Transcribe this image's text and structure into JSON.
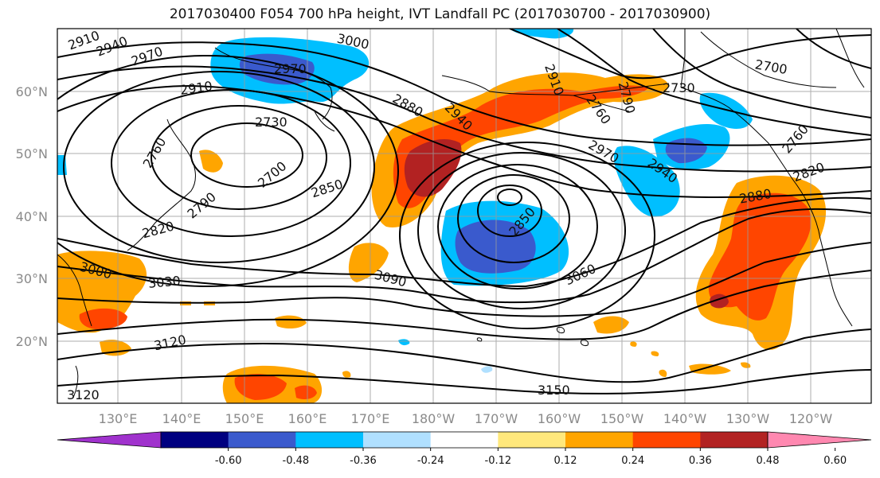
{
  "title": "2017030400 F054 700 hPa height, IVT Landfall PC (2017030700 - 2017030900)",
  "lat_labels": [
    "60°N",
    "50°N",
    "40°N",
    "30°N",
    "20°N"
  ],
  "lon_labels": [
    "130°E",
    "140°E",
    "150°E",
    "160°E",
    "170°E",
    "180°W",
    "170°W",
    "160°W",
    "150°W",
    "140°W",
    "130°W",
    "120°W"
  ],
  "contour_labels": [
    "2910",
    "2940",
    "2970",
    "3000",
    "2970",
    "2910",
    "2730",
    "2760",
    "2700",
    "2790",
    "2820",
    "2850",
    "2880",
    "2940",
    "2910",
    "2850",
    "3000",
    "3030",
    "3090",
    "3120",
    "3120",
    "3150",
    "3060",
    "2970",
    "2940",
    "2880",
    "2820",
    "2760",
    "2730",
    "2700",
    "2790",
    "2760"
  ],
  "colorbar": {
    "ticks": [
      "-0.60",
      "-0.48",
      "-0.36",
      "-0.24",
      "-0.12",
      "0.12",
      "0.24",
      "0.36",
      "0.48",
      "0.60"
    ],
    "colors": [
      "#a032cd",
      "#000080",
      "#3a5acd",
      "#00bfff",
      "#b0e0ff",
      "#ffffff",
      "#ffe87c",
      "#ffa500",
      "#ff4500",
      "#b22222",
      "#ff88b0"
    ]
  }
}
